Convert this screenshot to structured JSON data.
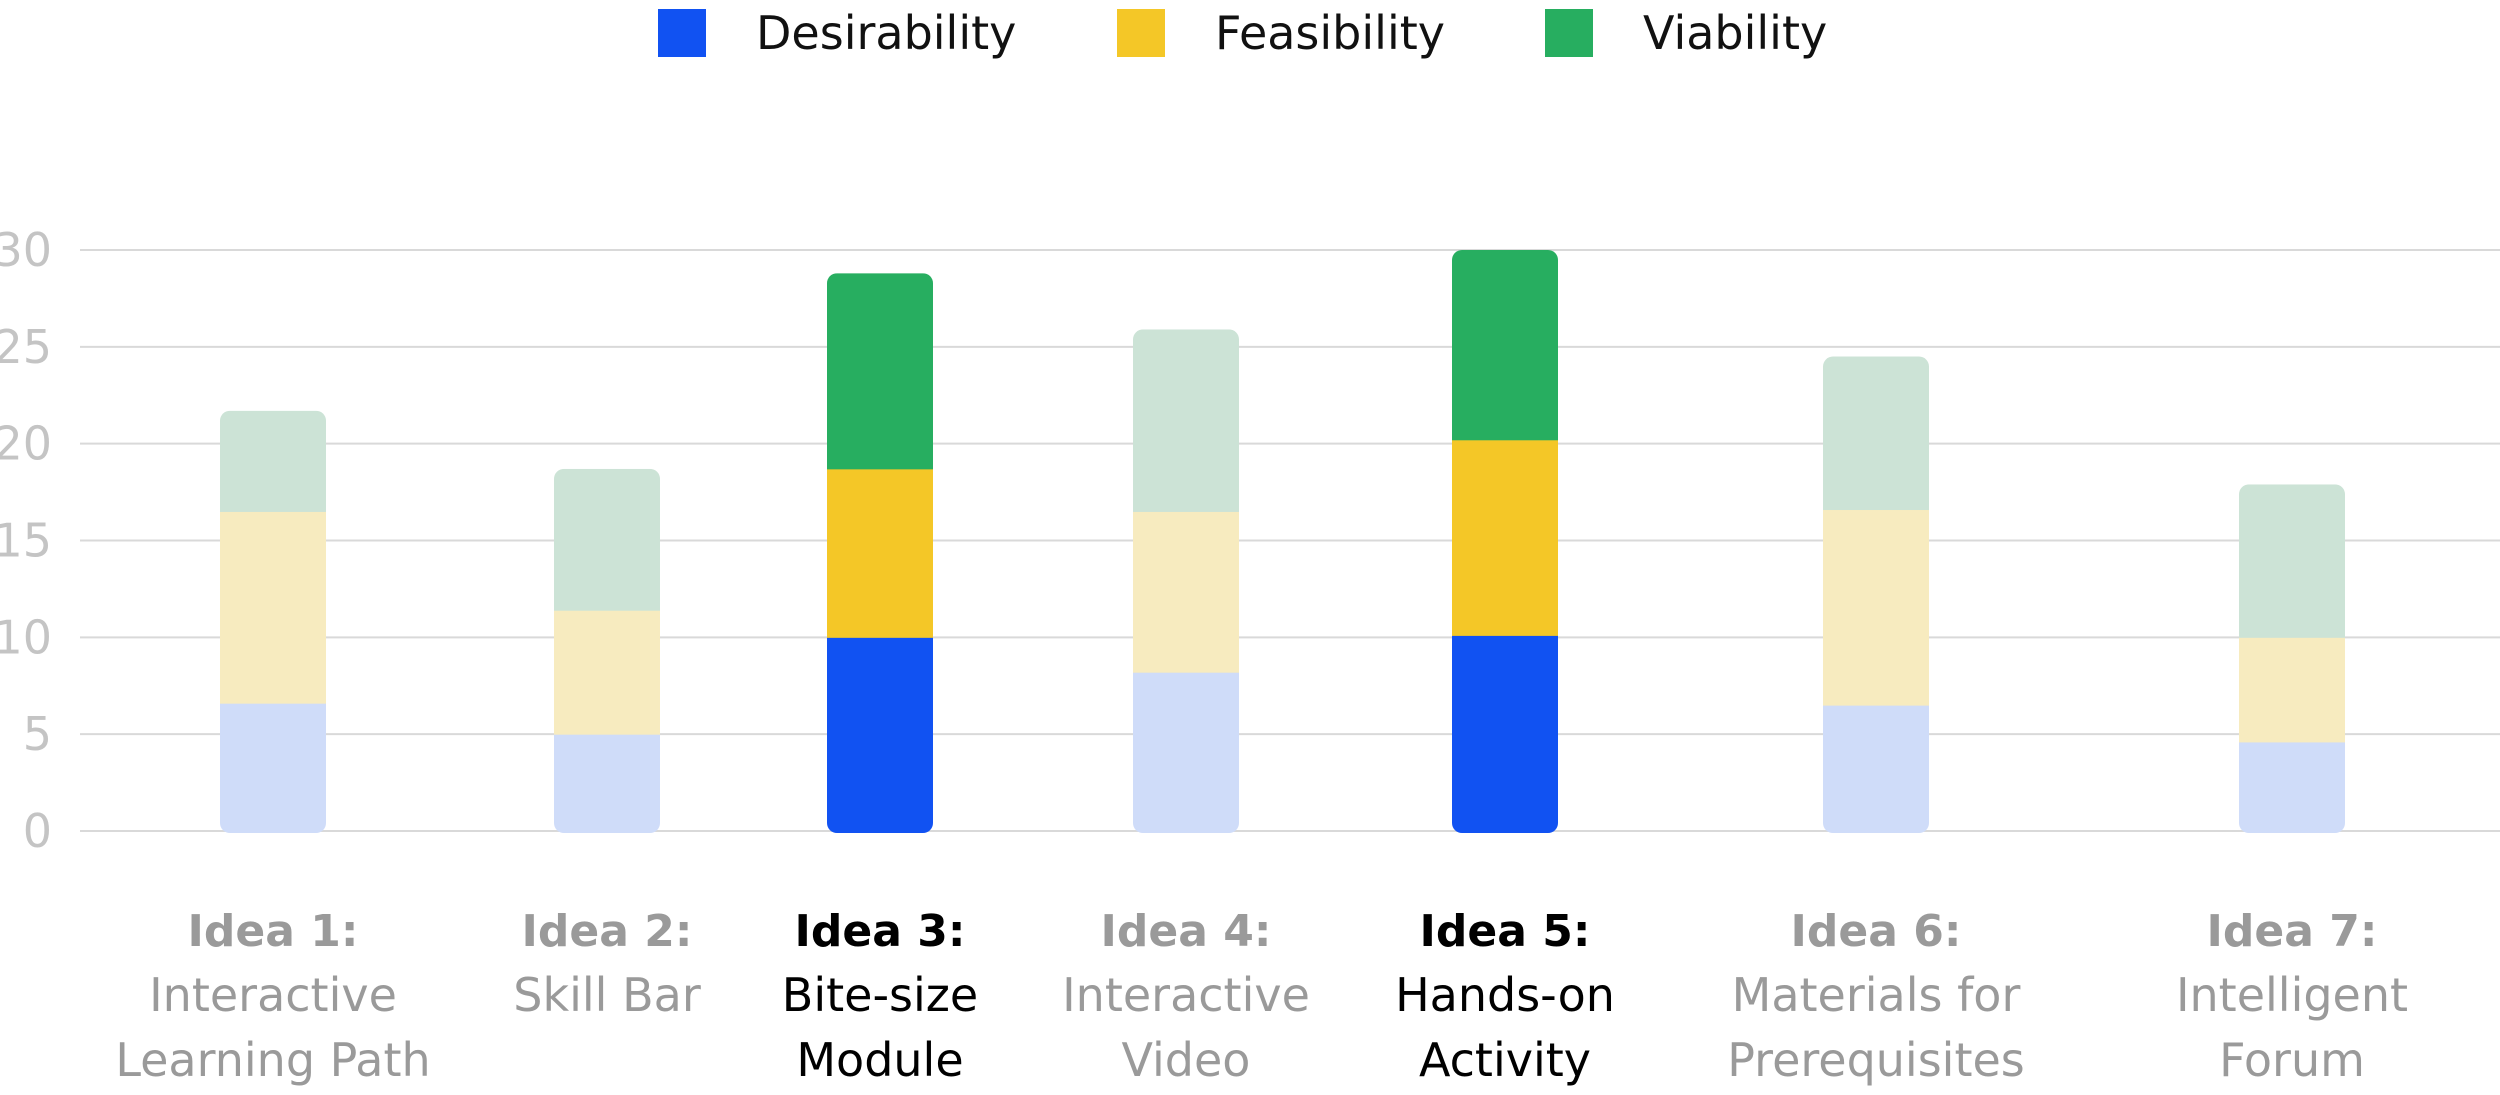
{
  "chart_data": {
    "type": "bar",
    "stacked": true,
    "legend_position": "top-center",
    "grid": true,
    "ylim": [
      0,
      30
    ],
    "yticks": [
      "0",
      "5",
      "10",
      "15",
      "20",
      "25",
      "30"
    ],
    "colors": {
      "Desirability": "#1152f2",
      "Feasibility": "#f4c727",
      "Viability": "#27ae60",
      "Desirability_faded": "#cfdcf9",
      "Feasibility_faded": "#f7ebbf",
      "Viability_faded": "#cce3d6",
      "grid": "#d9d9d9",
      "tick_label": "#c4c4c4",
      "muted_label": "#9a9a9a",
      "highlight_label": "#000000"
    },
    "series": [
      {
        "name": "Desirability",
        "values": [
          6.6,
          5.0,
          10.0,
          8.2,
          10.1,
          6.5,
          4.6
        ]
      },
      {
        "name": "Feasibility",
        "values": [
          9.9,
          6.4,
          8.7,
          8.3,
          10.1,
          10.1,
          5.4
        ]
      },
      {
        "name": "Viability",
        "values": [
          5.2,
          7.3,
          10.1,
          9.4,
          9.8,
          7.9,
          7.9
        ]
      }
    ],
    "categories": [
      {
        "id": "Idea 1:",
        "name_lines": [
          "Interactive",
          "Learning Path"
        ],
        "highlighted": false
      },
      {
        "id": "Idea 2:",
        "name_lines": [
          "Skill Bar"
        ],
        "highlighted": false
      },
      {
        "id": "Idea 3:",
        "name_lines": [
          "Bite-size",
          "Module"
        ],
        "highlighted": true
      },
      {
        "id": "Idea 4:",
        "name_lines": [
          "Interactive",
          "Video"
        ],
        "highlighted": false
      },
      {
        "id": "Idea 5:",
        "name_lines": [
          "Hands-on",
          "Activity"
        ],
        "highlighted": true
      },
      {
        "id": "Idea 6:",
        "name_lines": [
          "Materials for",
          "Prerequisites"
        ],
        "highlighted": false
      },
      {
        "id": "Idea 7:",
        "name_lines": [
          "Intelligent",
          "Forum"
        ],
        "highlighted": false
      }
    ]
  }
}
